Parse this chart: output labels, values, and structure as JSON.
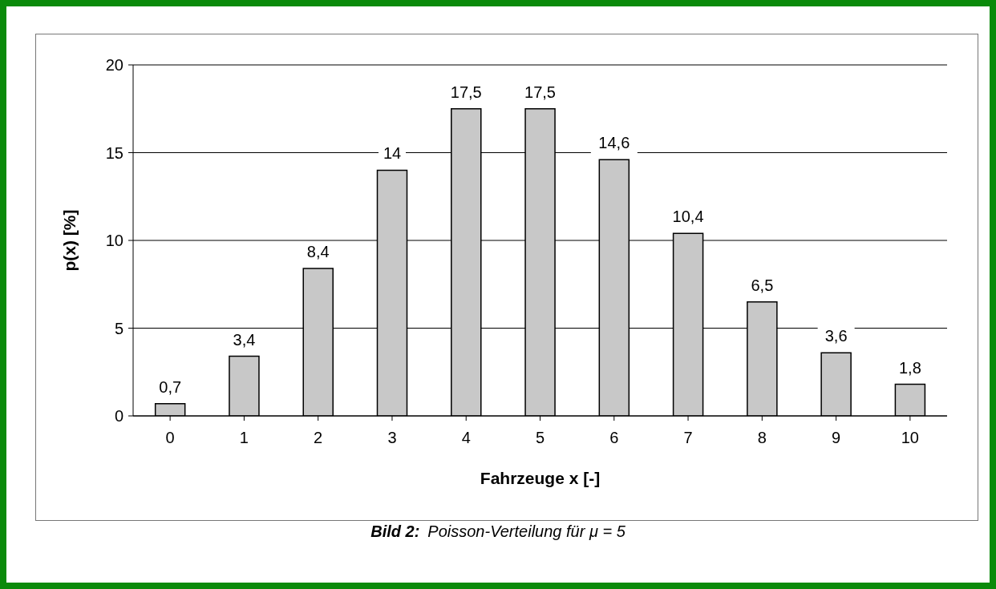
{
  "chart_data": {
    "type": "bar",
    "xlabel": "Fahrzeuge x [-]",
    "ylabel": "p(x) [%]",
    "categories": [
      "0",
      "1",
      "2",
      "3",
      "4",
      "5",
      "6",
      "7",
      "8",
      "9",
      "10"
    ],
    "values": [
      0.7,
      3.4,
      8.4,
      14,
      17.5,
      17.5,
      14.6,
      10.4,
      6.5,
      3.6,
      1.8
    ],
    "value_labels": [
      "0,7",
      "3,4",
      "8,4",
      "14",
      "17,5",
      "17,5",
      "14,6",
      "10,4",
      "6,5",
      "3,6",
      "1,8"
    ],
    "color": "#c8c8c8",
    "ylim": [
      0,
      20
    ],
    "yticks": [
      0,
      5,
      10,
      15,
      20
    ],
    "grid": "y",
    "legend": false,
    "annotations": [
      "Bild 2:",
      "Poisson-Verteilung für μ = 5"
    ]
  }
}
